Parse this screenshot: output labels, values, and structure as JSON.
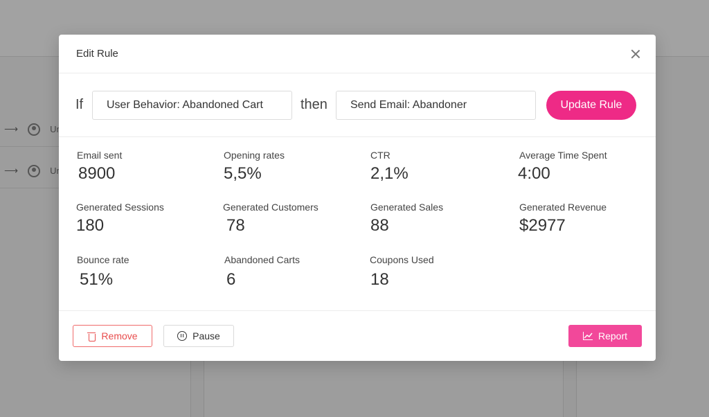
{
  "background": {
    "rows": [
      {
        "label": "Unr"
      },
      {
        "label": "Unr"
      }
    ]
  },
  "modal": {
    "title": "Edit Rule",
    "rule": {
      "if_label": "If",
      "condition_value": "User Behavior: Abandoned Cart",
      "then_label": "then",
      "action_value": "Send Email: Abandoner",
      "update_label": "Update Rule"
    },
    "stats": [
      {
        "label": "Email sent",
        "value": "8900"
      },
      {
        "label": "Opening rates",
        "value": "5,5%"
      },
      {
        "label": "CTR",
        "value": "2,1%"
      },
      {
        "label": "Average Time Spent",
        "value": "4:00"
      },
      {
        "label": "Generated Sessions",
        "value": "180"
      },
      {
        "label": "Generated Customers",
        "value": "78"
      },
      {
        "label": "Generated Sales",
        "value": "88"
      },
      {
        "label": "Generated Revenue",
        "value": "$2977"
      },
      {
        "label": "Bounce rate",
        "value": "51%"
      },
      {
        "label": "Abandoned Carts",
        "value": "6"
      },
      {
        "label": "Coupons Used",
        "value": "18"
      }
    ],
    "footer": {
      "remove_label": "Remove",
      "pause_label": "Pause",
      "report_label": "Report"
    }
  },
  "colors": {
    "accent": "#ee2a86",
    "report": "#f2489a",
    "danger": "#e84c4c"
  },
  "icons": [
    "close-icon",
    "trash-icon",
    "pause-icon",
    "chart-icon",
    "arrow-icon",
    "user-circle-icon"
  ]
}
